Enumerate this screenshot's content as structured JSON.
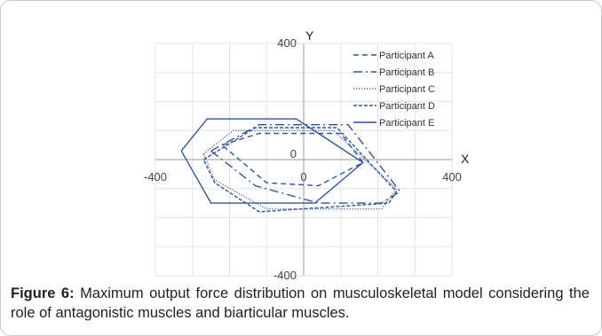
{
  "caption": {
    "label": "Figure 6:",
    "text": " Maximum output force distribution on musculoskeletal model considering the role of antagonistic muscles and biarticular muscles."
  },
  "chart_data": {
    "type": "line",
    "xlabel": "X",
    "ylabel": "Y",
    "xlim": [
      -400,
      400
    ],
    "ylim": [
      -400,
      400
    ],
    "x_ticks": [
      "-400",
      "0",
      "400"
    ],
    "y_ticks": [
      "400",
      "0",
      "-400"
    ],
    "grid": true,
    "legend_position": "top-right",
    "color": "#2f5597",
    "series": [
      {
        "name": "Participant A",
        "dash": "6 4",
        "points": [
          [
            -220,
            50
          ],
          [
            -120,
            90
          ],
          [
            100,
            90
          ],
          [
            160,
            -10
          ],
          [
            40,
            -90
          ],
          [
            -100,
            -80
          ],
          [
            -220,
            50
          ]
        ]
      },
      {
        "name": "Participant B",
        "dash": "10 4 2 4",
        "points": [
          [
            -250,
            30
          ],
          [
            -120,
            120
          ],
          [
            120,
            120
          ],
          [
            260,
            -110
          ],
          [
            210,
            -150
          ],
          [
            40,
            -150
          ],
          [
            -130,
            -90
          ],
          [
            -250,
            30
          ]
        ]
      },
      {
        "name": "Participant C",
        "dash": "1 2",
        "points": [
          [
            -270,
            20
          ],
          [
            -190,
            100
          ],
          [
            80,
            100
          ],
          [
            250,
            -100
          ],
          [
            210,
            -170
          ],
          [
            -100,
            -170
          ],
          [
            -240,
            -70
          ],
          [
            -270,
            20
          ]
        ]
      },
      {
        "name": "Participant D",
        "dash": "4 2",
        "points": [
          [
            -270,
            0
          ],
          [
            -130,
            110
          ],
          [
            90,
            110
          ],
          [
            250,
            -110
          ],
          [
            230,
            -150
          ],
          [
            -120,
            -180
          ],
          [
            -240,
            -80
          ],
          [
            -270,
            0
          ]
        ]
      },
      {
        "name": "Participant E",
        "dash": "",
        "points": [
          [
            -330,
            30
          ],
          [
            -260,
            140
          ],
          [
            -20,
            140
          ],
          [
            160,
            -10
          ],
          [
            30,
            -150
          ],
          [
            -250,
            -150
          ],
          [
            -330,
            30
          ]
        ]
      }
    ]
  }
}
